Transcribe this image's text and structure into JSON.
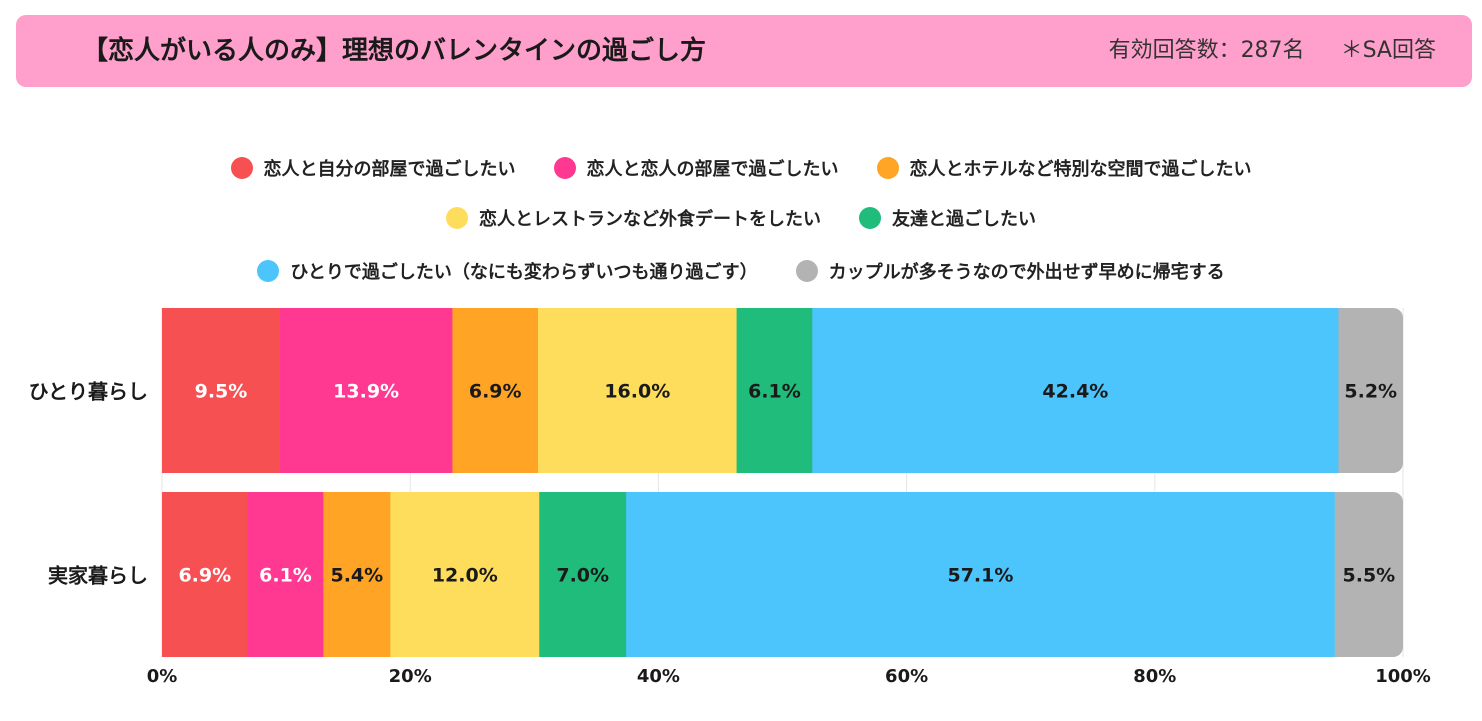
{
  "header": {
    "title": "【恋人がいる人のみ】理想のバレンタインの過ごし方",
    "respondents": "有効回答数：287名",
    "answer_type": "＊SA回答",
    "background_color": "#ff9fcb"
  },
  "chart_data": {
    "type": "bar",
    "orientation": "horizontal",
    "stacked": true,
    "normalized": true,
    "title": "【恋人がいる人のみ】理想のバレンタインの過ごし方",
    "categories": [
      "ひとり暮らし",
      "実家暮らし"
    ],
    "series": [
      {
        "name": "恋人と自分の部屋で過ごしたい",
        "color": "#f65052",
        "label_color": "#ffffff",
        "values": [
          9.5,
          6.9
        ]
      },
      {
        "name": "恋人と恋人の部屋で過ごしたい",
        "color": "#ff3891",
        "label_color": "#ffffff",
        "values": [
          13.9,
          6.1
        ]
      },
      {
        "name": "恋人とホテルなど特別な空間で過ごしたい",
        "color": "#ffa424",
        "label_color": "#1a1a1a",
        "values": [
          6.9,
          5.4
        ]
      },
      {
        "name": "恋人とレストランなど外食デートをしたい",
        "color": "#ffdd5c",
        "label_color": "#1a1a1a",
        "values": [
          16.0,
          12.0
        ]
      },
      {
        "name": "友達と過ごしたい",
        "color": "#1fbc7b",
        "label_color": "#1a1a1a",
        "values": [
          6.1,
          7.0
        ]
      },
      {
        "name": "ひとりで過ごしたい（なにも変わらずいつも通り過ごす）",
        "color": "#4cc4fc",
        "label_color": "#1a1a1a",
        "values": [
          42.4,
          57.1
        ]
      },
      {
        "name": "カップルが多そうなので外出せず早めに帰宅する",
        "color": "#b3b3b3",
        "label_color": "#1a1a1a",
        "values": [
          5.2,
          5.5
        ]
      }
    ],
    "value_labels": [
      [
        "9.5%",
        "13.9%",
        "6.9%",
        "16.0%",
        "6.1%",
        "42.4%",
        "5.2%"
      ],
      [
        "6.9%",
        "6.1%",
        "5.4%",
        "12.0%",
        "7.0%",
        "57.1%",
        "5.5%"
      ]
    ],
    "x_ticks": [
      0,
      20,
      40,
      60,
      80,
      100
    ],
    "x_tick_labels": [
      "0%",
      "20%",
      "40%",
      "60%",
      "80%",
      "100%"
    ],
    "xlim": [
      0,
      100
    ],
    "xlabel": "",
    "ylabel": "",
    "grid": true,
    "legend_position": "top"
  }
}
